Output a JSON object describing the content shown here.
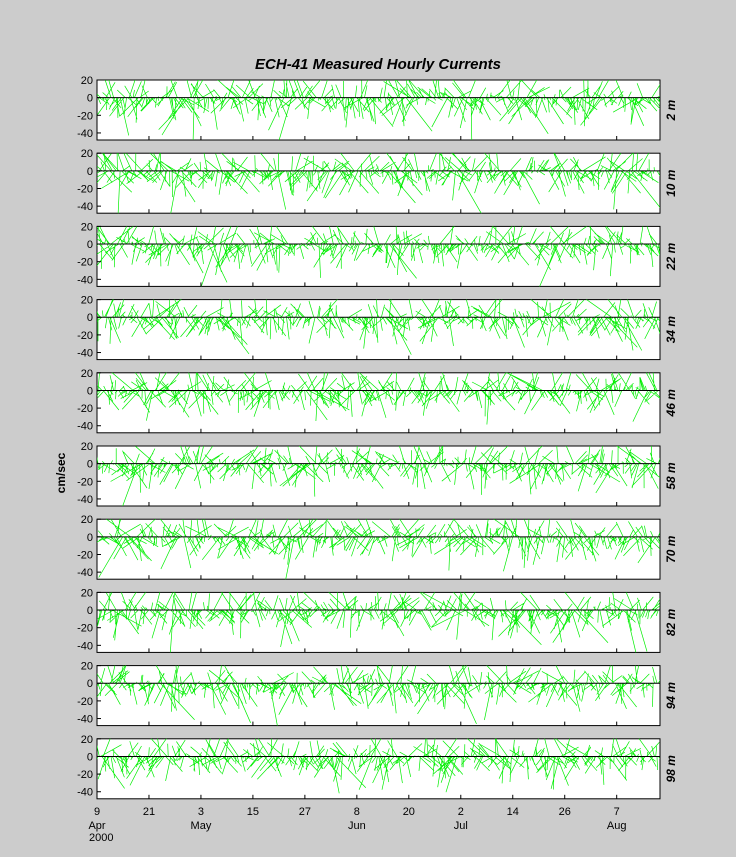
{
  "chart_data": {
    "type": "line",
    "subtype": "stick-plot",
    "title": "ECH-41   Measured Hourly Currents",
    "ylabel": "cm/sec",
    "ylim": [
      -48,
      20
    ],
    "yticks": [
      20,
      0,
      -20,
      -40
    ],
    "xlim": [
      0,
      130
    ],
    "x_ticks": [
      {
        "day": 0,
        "label": "9",
        "month": "Apr"
      },
      {
        "day": 12,
        "label": "21",
        "month": ""
      },
      {
        "day": 24,
        "label": "3",
        "month": "May"
      },
      {
        "day": 36,
        "label": "15",
        "month": ""
      },
      {
        "day": 48,
        "label": "27",
        "month": ""
      },
      {
        "day": 60,
        "label": "8",
        "month": "Jun"
      },
      {
        "day": 72,
        "label": "20",
        "month": ""
      },
      {
        "day": 84,
        "label": "2",
        "month": "Jul"
      },
      {
        "day": 96,
        "label": "14",
        "month": ""
      },
      {
        "day": 108,
        "label": "26",
        "month": ""
      },
      {
        "day": 120,
        "label": "7",
        "month": "Aug"
      }
    ],
    "year": "2000",
    "grid": false,
    "stick_color": "#00ee00",
    "series": [
      {
        "name": "2 m"
      },
      {
        "name": "10 m"
      },
      {
        "name": "22 m"
      },
      {
        "name": "34 m"
      },
      {
        "name": "46 m"
      },
      {
        "name": "58 m"
      },
      {
        "name": "70 m"
      },
      {
        "name": "82 m"
      },
      {
        "name": "94 m"
      },
      {
        "name": "98 m"
      }
    ]
  }
}
